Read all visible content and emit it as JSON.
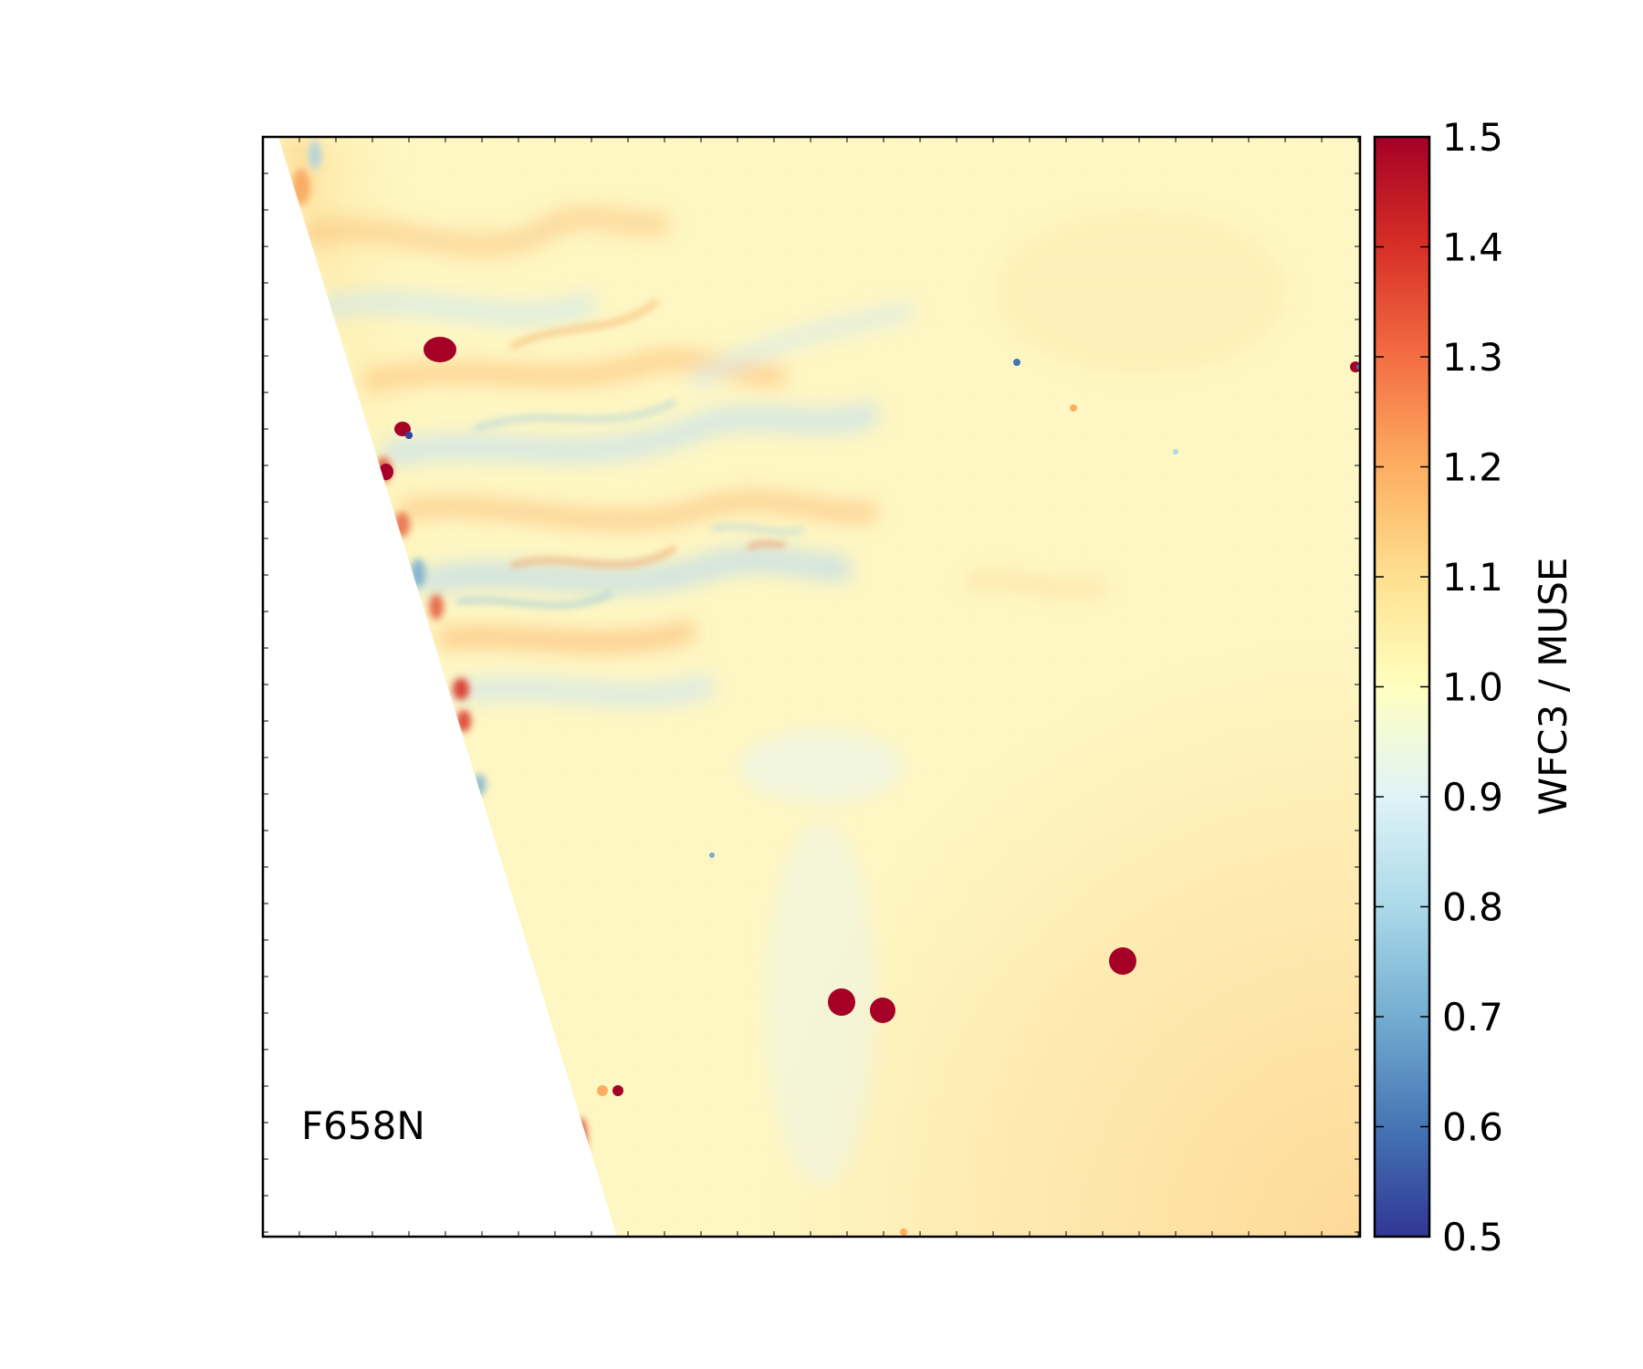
{
  "chart_data": {
    "type": "heatmap",
    "panel_label": "F658N",
    "xlabel": "",
    "ylabel": "",
    "colorbar": {
      "label": "WFC3 / MUSE",
      "min": 0.5,
      "max": 1.5,
      "ticks": [
        "0.5",
        "0.6",
        "0.7",
        "0.8",
        "0.9",
        "1.0",
        "1.1",
        "1.2",
        "1.3",
        "1.4",
        "1.5"
      ],
      "colormap": "RdYlBu_r",
      "stops": [
        "#313695",
        "#4575b4",
        "#74add1",
        "#abd9e9",
        "#e0f3f8",
        "#ffffbf",
        "#fee090",
        "#fdae61",
        "#f46d43",
        "#d73027",
        "#a50026"
      ]
    },
    "background_ratio": 1.02,
    "masked_color": "#ffffff",
    "sources": [
      {
        "ratio": 1.5,
        "kind": "star"
      },
      {
        "ratio": 1.5,
        "kind": "star"
      },
      {
        "ratio": 1.5,
        "kind": "star"
      },
      {
        "ratio": 1.5,
        "kind": "star"
      },
      {
        "ratio": 1.5,
        "kind": "star"
      },
      {
        "ratio": 1.5,
        "kind": "star"
      },
      {
        "ratio": 1.5,
        "kind": "star"
      }
    ]
  }
}
